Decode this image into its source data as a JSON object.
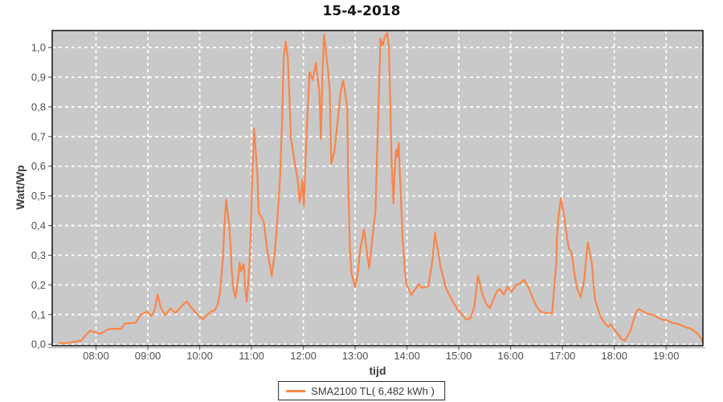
{
  "title": "15-4-2018",
  "legend": {
    "label": "SMA2100 TL( 6,482 kWh )"
  },
  "colors": {
    "series": "#F9854B",
    "plot_background": "#C9C9C9",
    "grid": "#FFFFFF",
    "plot_border": "#1c1c1c",
    "tick_label": "#4d4d4d",
    "tick_mark": "#5a5a5a"
  },
  "chart_data": {
    "type": "line",
    "title": "15-4-2018",
    "xlabel": "tijd",
    "ylabel": "Watt/Wp",
    "legend_position": "bottom-center",
    "grid": true,
    "x_domain": [
      7.155,
      19.71
    ],
    "ylim": [
      0.0,
      1.057
    ],
    "x_tick_hours": [
      8,
      9,
      10,
      11,
      12,
      13,
      14,
      15,
      16,
      17,
      18,
      19
    ],
    "x_tick_labels": [
      "08:00",
      "09:00",
      "10:00",
      "11:00",
      "12:00",
      "13:00",
      "14:00",
      "15:00",
      "16:00",
      "17:00",
      "18:00",
      "19:00"
    ],
    "y_tick_values": [
      0.0,
      0.1,
      0.2,
      0.3,
      0.4,
      0.5,
      0.6,
      0.7,
      0.8,
      0.9,
      1.0
    ],
    "y_tick_labels": [
      "0,0",
      "0,1",
      "0,2",
      "0,3",
      "0,4",
      "0,5",
      "0,6",
      "0,7",
      "0,8",
      "0,9",
      "1,0"
    ],
    "series": [
      {
        "name": "SMA2100 TL( 6,482 kWh )",
        "color": "#F9854B",
        "points": [
          [
            7.29,
            0.004
          ],
          [
            7.45,
            0.004
          ],
          [
            7.58,
            0.008
          ],
          [
            7.71,
            0.012
          ],
          [
            7.81,
            0.032
          ],
          [
            7.89,
            0.046
          ],
          [
            7.98,
            0.04
          ],
          [
            8.09,
            0.035
          ],
          [
            8.2,
            0.048
          ],
          [
            8.29,
            0.052
          ],
          [
            8.48,
            0.052
          ],
          [
            8.56,
            0.07
          ],
          [
            8.76,
            0.072
          ],
          [
            8.87,
            0.1
          ],
          [
            8.98,
            0.11
          ],
          [
            9.07,
            0.095
          ],
          [
            9.13,
            0.115
          ],
          [
            9.19,
            0.168
          ],
          [
            9.24,
            0.128
          ],
          [
            9.33,
            0.098
          ],
          [
            9.44,
            0.121
          ],
          [
            9.53,
            0.105
          ],
          [
            9.69,
            0.135
          ],
          [
            9.75,
            0.144
          ],
          [
            9.87,
            0.117
          ],
          [
            9.98,
            0.096
          ],
          [
            10.06,
            0.085
          ],
          [
            10.22,
            0.11
          ],
          [
            10.29,
            0.115
          ],
          [
            10.34,
            0.13
          ],
          [
            10.39,
            0.171
          ],
          [
            10.42,
            0.23
          ],
          [
            10.45,
            0.293
          ],
          [
            10.47,
            0.374
          ],
          [
            10.51,
            0.487
          ],
          [
            10.57,
            0.401
          ],
          [
            10.6,
            0.32
          ],
          [
            10.62,
            0.247
          ],
          [
            10.65,
            0.184
          ],
          [
            10.69,
            0.157
          ],
          [
            10.73,
            0.202
          ],
          [
            10.76,
            0.252
          ],
          [
            10.77,
            0.275
          ],
          [
            10.8,
            0.247
          ],
          [
            10.85,
            0.27
          ],
          [
            10.88,
            0.184
          ],
          [
            10.91,
            0.144
          ],
          [
            10.96,
            0.266
          ],
          [
            10.99,
            0.401
          ],
          [
            11.01,
            0.536
          ],
          [
            11.05,
            0.727
          ],
          [
            11.11,
            0.581
          ],
          [
            11.14,
            0.442
          ],
          [
            11.19,
            0.43
          ],
          [
            11.24,
            0.41
          ],
          [
            11.3,
            0.32
          ],
          [
            11.36,
            0.26
          ],
          [
            11.39,
            0.229
          ],
          [
            11.45,
            0.311
          ],
          [
            11.5,
            0.419
          ],
          [
            11.55,
            0.555
          ],
          [
            11.59,
            0.75
          ],
          [
            11.62,
            0.96
          ],
          [
            11.66,
            1.02
          ],
          [
            11.7,
            0.967
          ],
          [
            11.73,
            0.84
          ],
          [
            11.76,
            0.696
          ],
          [
            11.84,
            0.605
          ],
          [
            11.89,
            0.556
          ],
          [
            11.93,
            0.478
          ],
          [
            11.98,
            0.555
          ],
          [
            12.01,
            0.464
          ],
          [
            12.06,
            0.7
          ],
          [
            12.12,
            0.917
          ],
          [
            12.18,
            0.89
          ],
          [
            12.24,
            0.949
          ],
          [
            12.31,
            0.849
          ],
          [
            12.34,
            0.69
          ],
          [
            12.37,
            0.92
          ],
          [
            12.4,
            1.043
          ],
          [
            12.48,
            0.921
          ],
          [
            12.51,
            0.849
          ],
          [
            12.54,
            0.609
          ],
          [
            12.6,
            0.65
          ],
          [
            12.66,
            0.75
          ],
          [
            12.72,
            0.85
          ],
          [
            12.77,
            0.89
          ],
          [
            12.85,
            0.795
          ],
          [
            12.86,
            0.595
          ],
          [
            12.88,
            0.446
          ],
          [
            12.9,
            0.32
          ],
          [
            12.93,
            0.238
          ],
          [
            13.0,
            0.193
          ],
          [
            13.05,
            0.238
          ],
          [
            13.1,
            0.32
          ],
          [
            13.17,
            0.388
          ],
          [
            13.24,
            0.293
          ],
          [
            13.27,
            0.257
          ],
          [
            13.31,
            0.32
          ],
          [
            13.36,
            0.401
          ],
          [
            13.39,
            0.446
          ],
          [
            13.45,
            0.8
          ],
          [
            13.49,
            1.03
          ],
          [
            13.53,
            1.007
          ],
          [
            13.57,
            1.034
          ],
          [
            13.62,
            1.05
          ],
          [
            13.65,
            1.003
          ],
          [
            13.68,
            0.795
          ],
          [
            13.7,
            0.623
          ],
          [
            13.74,
            0.474
          ],
          [
            13.76,
            0.578
          ],
          [
            13.79,
            0.655
          ],
          [
            13.81,
            0.632
          ],
          [
            13.84,
            0.678
          ],
          [
            13.86,
            0.587
          ],
          [
            13.89,
            0.47
          ],
          [
            13.91,
            0.37
          ],
          [
            13.94,
            0.298
          ],
          [
            13.96,
            0.244
          ],
          [
            13.99,
            0.203
          ],
          [
            14.03,
            0.188
          ],
          [
            14.08,
            0.167
          ],
          [
            14.23,
            0.203
          ],
          [
            14.29,
            0.19
          ],
          [
            14.41,
            0.195
          ],
          [
            14.49,
            0.28
          ],
          [
            14.54,
            0.375
          ],
          [
            14.65,
            0.26
          ],
          [
            14.75,
            0.19
          ],
          [
            14.88,
            0.145
          ],
          [
            14.98,
            0.117
          ],
          [
            15.09,
            0.095
          ],
          [
            15.14,
            0.083
          ],
          [
            15.22,
            0.087
          ],
          [
            15.3,
            0.127
          ],
          [
            15.37,
            0.231
          ],
          [
            15.45,
            0.17
          ],
          [
            15.53,
            0.136
          ],
          [
            15.6,
            0.122
          ],
          [
            15.73,
            0.177
          ],
          [
            15.79,
            0.186
          ],
          [
            15.87,
            0.167
          ],
          [
            15.94,
            0.194
          ],
          [
            16.02,
            0.177
          ],
          [
            16.1,
            0.199
          ],
          [
            16.18,
            0.205
          ],
          [
            16.26,
            0.217
          ],
          [
            16.35,
            0.19
          ],
          [
            16.43,
            0.154
          ],
          [
            16.5,
            0.127
          ],
          [
            16.58,
            0.11
          ],
          [
            16.64,
            0.107
          ],
          [
            16.8,
            0.104
          ],
          [
            16.84,
            0.19
          ],
          [
            16.88,
            0.271
          ],
          [
            16.89,
            0.352
          ],
          [
            16.92,
            0.425
          ],
          [
            16.97,
            0.492
          ],
          [
            17.03,
            0.434
          ],
          [
            17.08,
            0.37
          ],
          [
            17.12,
            0.325
          ],
          [
            17.15,
            0.316
          ],
          [
            17.18,
            0.307
          ],
          [
            17.23,
            0.239
          ],
          [
            17.28,
            0.19
          ],
          [
            17.34,
            0.163
          ],
          [
            17.35,
            0.158
          ],
          [
            17.42,
            0.217
          ],
          [
            17.46,
            0.293
          ],
          [
            17.49,
            0.343
          ],
          [
            17.57,
            0.271
          ],
          [
            17.6,
            0.2
          ],
          [
            17.63,
            0.15
          ],
          [
            17.73,
            0.095
          ],
          [
            17.81,
            0.072
          ],
          [
            17.88,
            0.059
          ],
          [
            17.93,
            0.068
          ],
          [
            18.0,
            0.05
          ],
          [
            18.08,
            0.032
          ],
          [
            18.14,
            0.018
          ],
          [
            18.2,
            0.011
          ],
          [
            18.31,
            0.045
          ],
          [
            18.37,
            0.081
          ],
          [
            18.42,
            0.108
          ],
          [
            18.47,
            0.119
          ],
          [
            18.55,
            0.112
          ],
          [
            18.62,
            0.104
          ],
          [
            18.73,
            0.1
          ],
          [
            18.84,
            0.09
          ],
          [
            18.93,
            0.083
          ],
          [
            19.02,
            0.081
          ],
          [
            19.11,
            0.072
          ],
          [
            19.2,
            0.07
          ],
          [
            19.31,
            0.063
          ],
          [
            19.4,
            0.056
          ],
          [
            19.46,
            0.054
          ],
          [
            19.54,
            0.045
          ],
          [
            19.62,
            0.033
          ],
          [
            19.68,
            0.018
          ],
          [
            19.7,
            0.01
          ]
        ]
      }
    ]
  }
}
